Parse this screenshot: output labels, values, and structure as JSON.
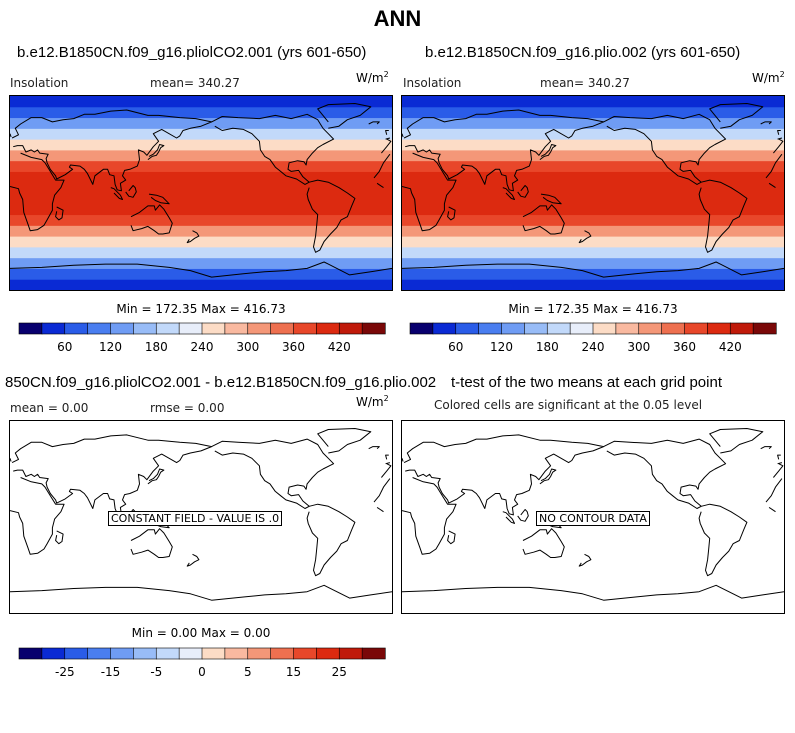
{
  "page": {
    "title": "ANN"
  },
  "panels": {
    "top_left": {
      "title": "b.e12.B1850CN.f09_g16.pliolCO2.001 (yrs 601-650)",
      "field": "Insolation",
      "stat": "mean=  340.27",
      "unit_base": "W/m",
      "unit_exp": "2",
      "minmax": "Min = 172.35 Max = 416.73"
    },
    "top_right": {
      "title": "b.e12.B1850CN.f09_g16.plio.002 (yrs 601-650)",
      "field": "Insolation",
      "stat": "mean=  340.27",
      "unit_base": "W/m",
      "unit_exp": "2",
      "minmax": "Min = 172.35 Max = 416.73"
    },
    "bottom_left": {
      "title": "850CN.f09_g16.pliolCO2.001 - b.e12.B1850CN.f09_g16.plio.002",
      "stat_mean": "mean =    0.00",
      "stat_rmse": "rmse =    0.00",
      "unit_base": "W/m",
      "unit_exp": "2",
      "box_label": "CONSTANT FIELD - VALUE IS .0",
      "minmax": "Min =   0.00 Max =   0.00"
    },
    "bottom_right": {
      "title": "t-test of the two means at each grid point",
      "subtitle": "Colored cells are significant at the 0.05 level",
      "box_label": "NO CONTOUR DATA"
    }
  },
  "chart_data": [
    {
      "type": "heatmap",
      "title": "b.e12.B1850CN.f09_g16.pliolCO2.001 (yrs 601-650)",
      "variable": "Insolation",
      "units": "W/m2",
      "mean": 340.27,
      "min": 172.35,
      "max": 416.73,
      "colorbar": {
        "colors": [
          "#08006e",
          "#0a2ad4",
          "#2a5ce8",
          "#4a7ef0",
          "#6f9cf4",
          "#98bcf7",
          "#c2d9fa",
          "#e8eefa",
          "#fcdcc6",
          "#f9b9a0",
          "#f49778",
          "#ee7050",
          "#e8472a",
          "#dc2a10",
          "#c01a0a",
          "#7a0808"
        ],
        "tick_labels": [
          "60",
          "120",
          "180",
          "240",
          "300",
          "360",
          "420"
        ]
      },
      "latitude_bands": {
        "lat": [
          -90,
          -80,
          -70,
          -60,
          -50,
          -40,
          -30,
          -20,
          -10,
          0,
          10,
          20,
          30,
          40,
          50,
          60,
          70,
          80
        ],
        "color_index": [
          1,
          2,
          4,
          6,
          8,
          10,
          12,
          13,
          13,
          13,
          13,
          12,
          10,
          8,
          6,
          4,
          2,
          1
        ]
      }
    },
    {
      "type": "heatmap",
      "title": "b.e12.B1850CN.f09_g16.plio.002 (yrs 601-650)",
      "variable": "Insolation",
      "units": "W/m2",
      "mean": 340.27,
      "min": 172.35,
      "max": 416.73,
      "colorbar": {
        "colors": [
          "#08006e",
          "#0a2ad4",
          "#2a5ce8",
          "#4a7ef0",
          "#6f9cf4",
          "#98bcf7",
          "#c2d9fa",
          "#e8eefa",
          "#fcdcc6",
          "#f9b9a0",
          "#f49778",
          "#ee7050",
          "#e8472a",
          "#dc2a10",
          "#c01a0a",
          "#7a0808"
        ],
        "tick_labels": [
          "60",
          "120",
          "180",
          "240",
          "300",
          "360",
          "420"
        ]
      },
      "latitude_bands": {
        "lat": [
          -90,
          -80,
          -70,
          -60,
          -50,
          -40,
          -30,
          -20,
          -10,
          0,
          10,
          20,
          30,
          40,
          50,
          60,
          70,
          80
        ],
        "color_index": [
          1,
          2,
          4,
          6,
          8,
          10,
          12,
          13,
          13,
          13,
          13,
          12,
          10,
          8,
          6,
          4,
          2,
          1
        ]
      }
    },
    {
      "type": "heatmap",
      "title": "850CN.f09_g16.pliolCO2.001 - b.e12.B1850CN.f09_g16.plio.002",
      "mean": 0.0,
      "rmse": 0.0,
      "min": 0.0,
      "max": 0.0,
      "colorbar": {
        "colors": [
          "#08006e",
          "#0a2ad4",
          "#2a5ce8",
          "#4a7ef0",
          "#6f9cf4",
          "#98bcf7",
          "#c2d9fa",
          "#e8eefa",
          "#fcdcc6",
          "#f9b9a0",
          "#f49778",
          "#ee7050",
          "#e8472a",
          "#dc2a10",
          "#c01a0a",
          "#7a0808"
        ],
        "tick_labels": [
          "-25",
          "-15",
          "-5",
          "0",
          "5",
          "15",
          "25"
        ]
      }
    },
    {
      "type": "heatmap",
      "title": "t-test of the two means at each grid point"
    }
  ]
}
